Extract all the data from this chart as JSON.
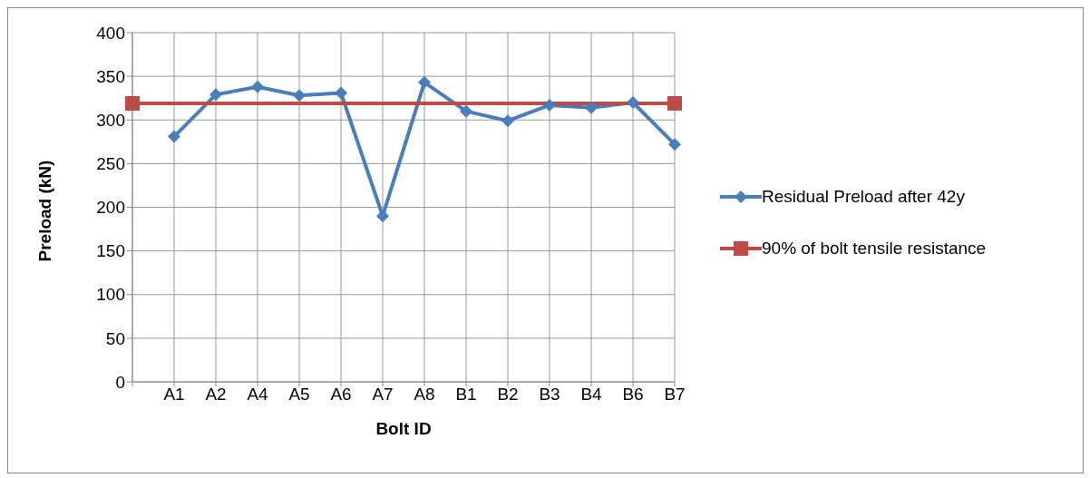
{
  "chart_data": {
    "type": "line",
    "xlabel": "Bolt ID",
    "ylabel": "Preload (kN)",
    "categories": [
      null,
      "A1",
      "A2",
      "A4",
      "A5",
      "A6",
      "A7",
      "A8",
      "B1",
      "B2",
      "B3",
      "B4",
      "B6",
      "B7"
    ],
    "ylim": [
      0,
      400
    ],
    "yticks": [
      0,
      50,
      100,
      150,
      200,
      250,
      300,
      350,
      400
    ],
    "grid": true,
    "legend": "right",
    "series": [
      {
        "name": "Residual Preload after 42y",
        "color": "#4a7ebb",
        "marker": "diamond",
        "values": [
          null,
          281,
          329,
          338,
          328,
          331,
          190,
          343,
          310,
          299,
          317,
          314,
          320,
          272
        ]
      },
      {
        "name": "90% of bolt tensile resistance",
        "color": "#be4b48",
        "marker": "square",
        "values": [
          319,
          null,
          null,
          null,
          null,
          null,
          null,
          null,
          null,
          null,
          null,
          null,
          null,
          319
        ]
      }
    ]
  }
}
